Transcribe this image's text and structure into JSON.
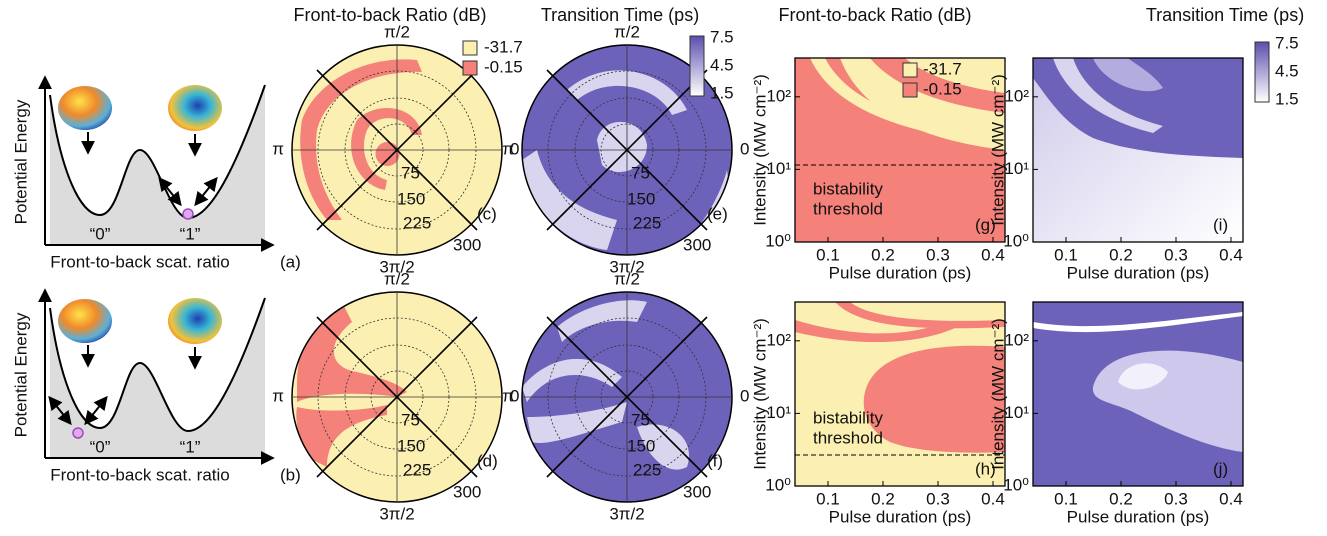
{
  "headers": [
    "Front-to-back Ratio (dB)",
    "Transition Time (ps)",
    "Front-to-back Ratio (dB)",
    "Transition Time (ps)"
  ],
  "energy_axes": {
    "y_label": "Potential Energy",
    "x_label": "Front-to-back scat. ratio"
  },
  "energy_panels": [
    {
      "tag": "(a)",
      "states": [
        "“0”",
        "“1”"
      ]
    },
    {
      "tag": "(b)",
      "states": [
        "“0”",
        "“1”"
      ]
    }
  ],
  "polar_axis": {
    "angle_labels": [
      "π/2",
      "π",
      "0",
      "3π/2"
    ],
    "radial_labels": [
      "75",
      "150",
      "225",
      "300"
    ]
  },
  "polar_panels": [
    {
      "tag": "(c)"
    },
    {
      "tag": "(e)"
    },
    {
      "tag": "(d)"
    },
    {
      "tag": "(f)"
    }
  ],
  "ratio_legend": [
    "-31.7",
    "-0.15"
  ],
  "time_colorbar": [
    "7.5",
    "4.5",
    "1.5"
  ],
  "map_axes": {
    "y_label": "Intensity (MW cm⁻²)",
    "x_label": "Pulse duration (ps)",
    "xticks": [
      "0.1",
      "0.2",
      "0.3",
      "0.4"
    ],
    "yticks": [
      "10⁰",
      "10¹",
      "10²"
    ]
  },
  "map_panels": [
    {
      "tag": "(g)",
      "annotation": [
        "bistability",
        "threshold"
      ]
    },
    {
      "tag": "(i)"
    },
    {
      "tag": "(h)",
      "annotation": [
        "bistability",
        "threshold"
      ]
    },
    {
      "tag": "(j)"
    }
  ]
}
